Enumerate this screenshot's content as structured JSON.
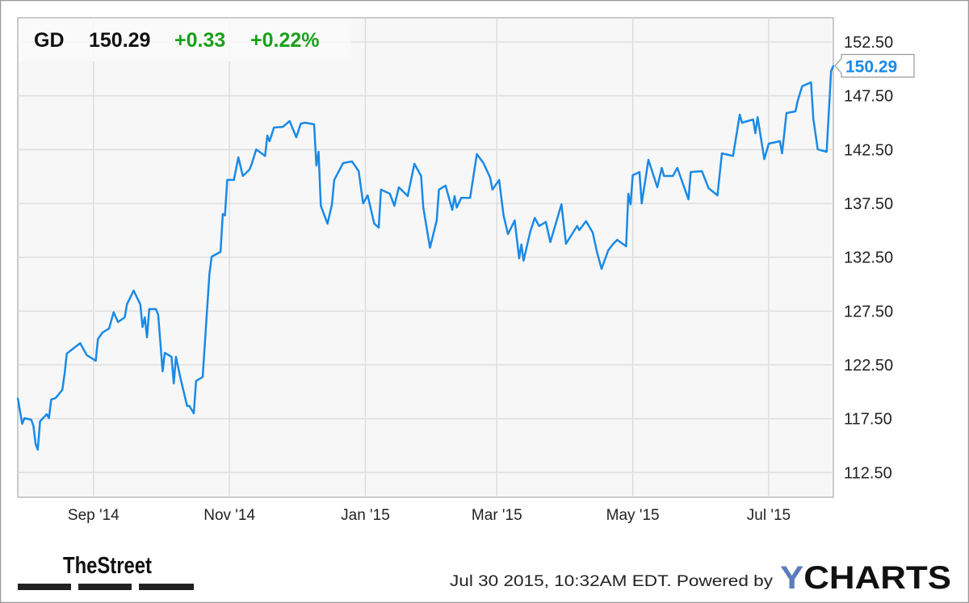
{
  "header": {
    "ticker": "GD",
    "price": "150.29",
    "change": "+0.33",
    "change_pct": "+0.22%"
  },
  "last_value_label": "150.29",
  "footer": {
    "timestamp": "Jul 30 2015, 10:32AM EDT.  Powered by",
    "logo_left": "TheStreet",
    "logo_right": "YCHARTS"
  },
  "colors": {
    "line": "#1a8ae6",
    "positive": "#1aa01a",
    "plot_bg": "#f7f7f7",
    "grid": "#dddddd",
    "ycharts_y": "#5b7dbd"
  },
  "chart_data": {
    "type": "line",
    "title": "",
    "xlabel": "",
    "ylabel": "",
    "grid": true,
    "y_axis_position": "right",
    "xlim": [
      "2014-07-29",
      "2015-07-30"
    ],
    "ylim": [
      110.2,
      154.75
    ],
    "y_ticks": [
      "112.50",
      "117.50",
      "122.50",
      "127.50",
      "132.50",
      "137.50",
      "142.50",
      "147.50",
      "152.50"
    ],
    "x_ticks": [
      {
        "date": "2014-09-01",
        "label": "Sep '14"
      },
      {
        "date": "2014-11-01",
        "label": "Nov '14"
      },
      {
        "date": "2015-01-01",
        "label": "Jan '15"
      },
      {
        "date": "2015-03-01",
        "label": "Mar '15"
      },
      {
        "date": "2015-05-01",
        "label": "May '15"
      },
      {
        "date": "2015-07-01",
        "label": "Jul '15"
      }
    ],
    "series": [
      {
        "points": [
          [
            "2014-07-29",
            119.42
          ],
          [
            "2014-07-31",
            117.02
          ],
          [
            "2014-08-01",
            117.55
          ],
          [
            "2014-08-04",
            117.4
          ],
          [
            "2014-08-05",
            116.88
          ],
          [
            "2014-08-06",
            115.15
          ],
          [
            "2014-08-07",
            114.62
          ],
          [
            "2014-08-08",
            117.25
          ],
          [
            "2014-08-11",
            117.92
          ],
          [
            "2014-08-12",
            117.55
          ],
          [
            "2014-08-13",
            119.28
          ],
          [
            "2014-08-15",
            119.42
          ],
          [
            "2014-08-18",
            120.18
          ],
          [
            "2014-08-19",
            121.68
          ],
          [
            "2014-08-20",
            123.55
          ],
          [
            "2014-08-26",
            124.52
          ],
          [
            "2014-08-29",
            123.4
          ],
          [
            "2014-09-02",
            122.88
          ],
          [
            "2014-09-03",
            124.9
          ],
          [
            "2014-09-05",
            125.5
          ],
          [
            "2014-09-08",
            125.88
          ],
          [
            "2014-09-10",
            127.38
          ],
          [
            "2014-09-12",
            126.48
          ],
          [
            "2014-09-15",
            126.92
          ],
          [
            "2014-09-16",
            128.12
          ],
          [
            "2014-09-19",
            129.4
          ],
          [
            "2014-09-22",
            128.12
          ],
          [
            "2014-09-23",
            126.02
          ],
          [
            "2014-09-24",
            126.92
          ],
          [
            "2014-09-25",
            125.05
          ],
          [
            "2014-09-26",
            127.68
          ],
          [
            "2014-09-29",
            127.68
          ],
          [
            "2014-09-30",
            127.15
          ],
          [
            "2014-10-02",
            121.9
          ],
          [
            "2014-10-03",
            123.62
          ],
          [
            "2014-10-06",
            123.25
          ],
          [
            "2014-10-07",
            120.78
          ],
          [
            "2014-10-08",
            123.25
          ],
          [
            "2014-10-10",
            121.3
          ],
          [
            "2014-10-13",
            118.68
          ],
          [
            "2014-10-14",
            118.68
          ],
          [
            "2014-10-16",
            118.0
          ],
          [
            "2014-10-17",
            121.0
          ],
          [
            "2014-10-20",
            121.38
          ],
          [
            "2014-10-23",
            130.9
          ],
          [
            "2014-10-24",
            132.55
          ],
          [
            "2014-10-28",
            133.0
          ],
          [
            "2014-10-29",
            136.52
          ],
          [
            "2014-10-30",
            136.38
          ],
          [
            "2014-10-31",
            139.68
          ],
          [
            "2014-11-03",
            139.68
          ],
          [
            "2014-11-05",
            141.78
          ],
          [
            "2014-11-07",
            140.05
          ],
          [
            "2014-11-10",
            140.65
          ],
          [
            "2014-11-11",
            141.18
          ],
          [
            "2014-11-13",
            142.52
          ],
          [
            "2014-11-17",
            141.92
          ],
          [
            "2014-11-18",
            143.8
          ],
          [
            "2014-11-19",
            143.28
          ],
          [
            "2014-11-21",
            144.55
          ],
          [
            "2014-11-25",
            144.62
          ],
          [
            "2014-11-28",
            145.15
          ],
          [
            "2014-12-01",
            143.65
          ],
          [
            "2014-12-03",
            144.92
          ],
          [
            "2014-12-05",
            145.0
          ],
          [
            "2014-12-09",
            144.85
          ],
          [
            "2014-12-10",
            141.02
          ],
          [
            "2014-12-11",
            142.3
          ],
          [
            "2014-12-12",
            137.28
          ],
          [
            "2014-12-15",
            135.62
          ],
          [
            "2014-12-17",
            137.42
          ],
          [
            "2014-12-18",
            139.68
          ],
          [
            "2014-12-22",
            141.25
          ],
          [
            "2014-12-26",
            141.4
          ],
          [
            "2014-12-29",
            140.5
          ],
          [
            "2014-12-31",
            137.5
          ],
          [
            "2015-01-02",
            138.25
          ],
          [
            "2015-01-05",
            135.62
          ],
          [
            "2015-01-07",
            135.25
          ],
          [
            "2015-01-08",
            138.78
          ],
          [
            "2015-01-12",
            138.4
          ],
          [
            "2015-01-14",
            137.28
          ],
          [
            "2015-01-16",
            139.0
          ],
          [
            "2015-01-20",
            138.18
          ],
          [
            "2015-01-23",
            141.18
          ],
          [
            "2015-01-26",
            140.05
          ],
          [
            "2015-01-27",
            137.12
          ],
          [
            "2015-01-30",
            133.38
          ],
          [
            "2015-02-02",
            135.92
          ],
          [
            "2015-02-03",
            138.78
          ],
          [
            "2015-02-06",
            139.15
          ],
          [
            "2015-02-09",
            136.9
          ],
          [
            "2015-02-10",
            138.18
          ],
          [
            "2015-02-11",
            137.12
          ],
          [
            "2015-02-13",
            138.02
          ],
          [
            "2015-02-17",
            138.02
          ],
          [
            "2015-02-20",
            142.08
          ],
          [
            "2015-02-23",
            141.25
          ],
          [
            "2015-02-26",
            139.9
          ],
          [
            "2015-02-27",
            138.78
          ],
          [
            "2015-03-02",
            139.68
          ],
          [
            "2015-03-04",
            136.38
          ],
          [
            "2015-03-06",
            134.65
          ],
          [
            "2015-03-09",
            135.92
          ],
          [
            "2015-03-11",
            132.4
          ],
          [
            "2015-03-12",
            133.68
          ],
          [
            "2015-03-13",
            132.18
          ],
          [
            "2015-03-16",
            134.88
          ],
          [
            "2015-03-18",
            136.15
          ],
          [
            "2015-03-20",
            135.4
          ],
          [
            "2015-03-23",
            135.78
          ],
          [
            "2015-03-25",
            133.9
          ],
          [
            "2015-03-30",
            137.42
          ],
          [
            "2015-04-01",
            133.75
          ],
          [
            "2015-04-06",
            135.4
          ],
          [
            "2015-04-07",
            135.02
          ],
          [
            "2015-04-10",
            135.85
          ],
          [
            "2015-04-13",
            134.8
          ],
          [
            "2015-04-15",
            132.92
          ],
          [
            "2015-04-17",
            131.42
          ],
          [
            "2015-04-20",
            133.15
          ],
          [
            "2015-04-22",
            133.68
          ],
          [
            "2015-04-24",
            134.12
          ],
          [
            "2015-04-28",
            133.52
          ],
          [
            "2015-04-29",
            138.4
          ],
          [
            "2015-04-30",
            137.42
          ],
          [
            "2015-05-01",
            140.12
          ],
          [
            "2015-05-04",
            140.42
          ],
          [
            "2015-05-05",
            137.5
          ],
          [
            "2015-05-08",
            141.55
          ],
          [
            "2015-05-12",
            139.0
          ],
          [
            "2015-05-14",
            140.8
          ],
          [
            "2015-05-15",
            140.05
          ],
          [
            "2015-05-19",
            140.05
          ],
          [
            "2015-05-21",
            140.8
          ],
          [
            "2015-05-26",
            137.88
          ],
          [
            "2015-05-27",
            140.42
          ],
          [
            "2015-06-01",
            140.5
          ],
          [
            "2015-06-04",
            138.92
          ],
          [
            "2015-06-08",
            138.25
          ],
          [
            "2015-06-10",
            142.15
          ],
          [
            "2015-06-15",
            141.92
          ],
          [
            "2015-06-18",
            145.75
          ],
          [
            "2015-06-19",
            145.0
          ],
          [
            "2015-06-24",
            145.3
          ],
          [
            "2015-06-25",
            144.02
          ],
          [
            "2015-06-26",
            145.52
          ],
          [
            "2015-06-29",
            141.62
          ],
          [
            "2015-07-01",
            143.05
          ],
          [
            "2015-07-06",
            143.28
          ],
          [
            "2015-07-07",
            142.15
          ],
          [
            "2015-07-09",
            145.9
          ],
          [
            "2015-07-13",
            146.05
          ],
          [
            "2015-07-14",
            147.02
          ],
          [
            "2015-07-16",
            148.38
          ],
          [
            "2015-07-20",
            148.75
          ],
          [
            "2015-07-21",
            145.38
          ],
          [
            "2015-07-23",
            142.52
          ],
          [
            "2015-07-27",
            142.3
          ],
          [
            "2015-07-29",
            149.8
          ],
          [
            "2015-07-30",
            150.29
          ]
        ]
      }
    ]
  }
}
